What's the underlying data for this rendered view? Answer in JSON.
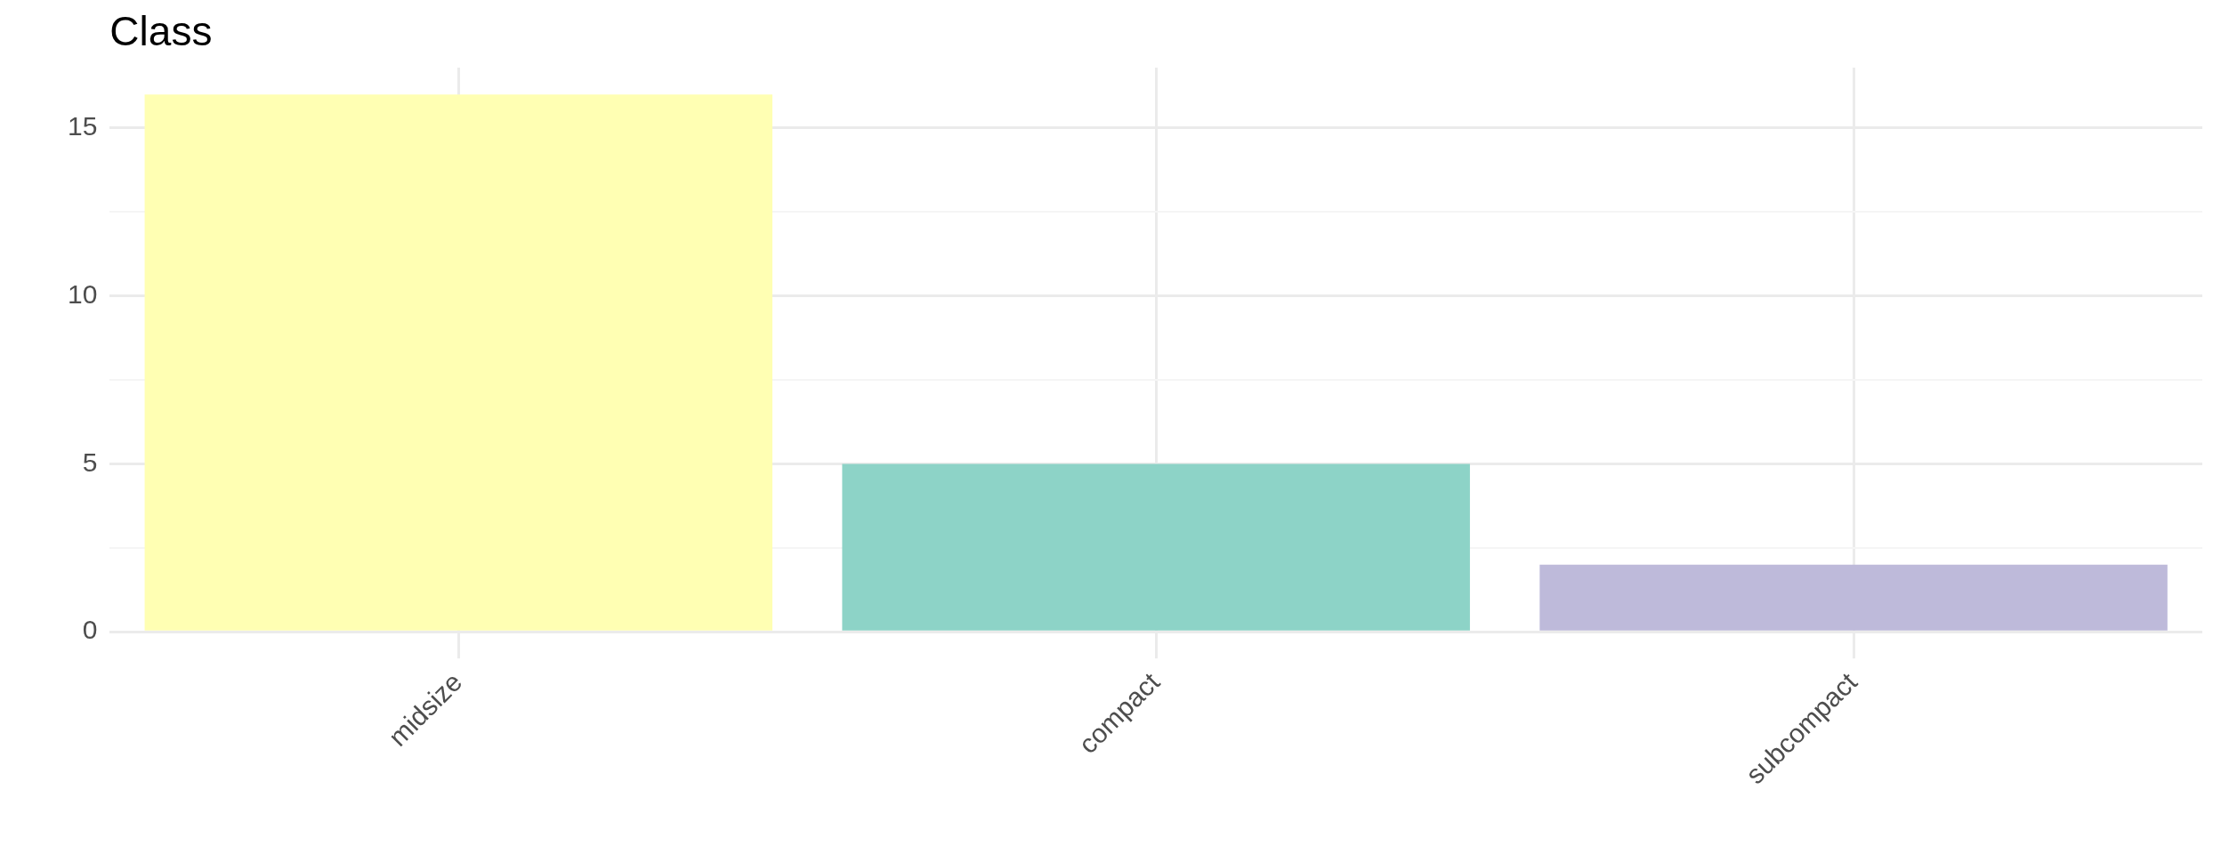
{
  "chart_data": {
    "type": "bar",
    "title": "Class",
    "categories": [
      "midsize",
      "compact",
      "subcompact"
    ],
    "values": [
      16,
      5,
      2
    ],
    "colors": [
      "#ffffb3",
      "#8dd3c7",
      "#bebada"
    ],
    "ylim": [
      0,
      16.8
    ],
    "yticks": [
      0,
      {
        "value": 2.5,
        "label": null
      },
      5,
      {
        "value": 7.5,
        "label": null
      },
      10,
      {
        "value": 12.5,
        "label": null
      },
      15
    ],
    "grid": true
  }
}
